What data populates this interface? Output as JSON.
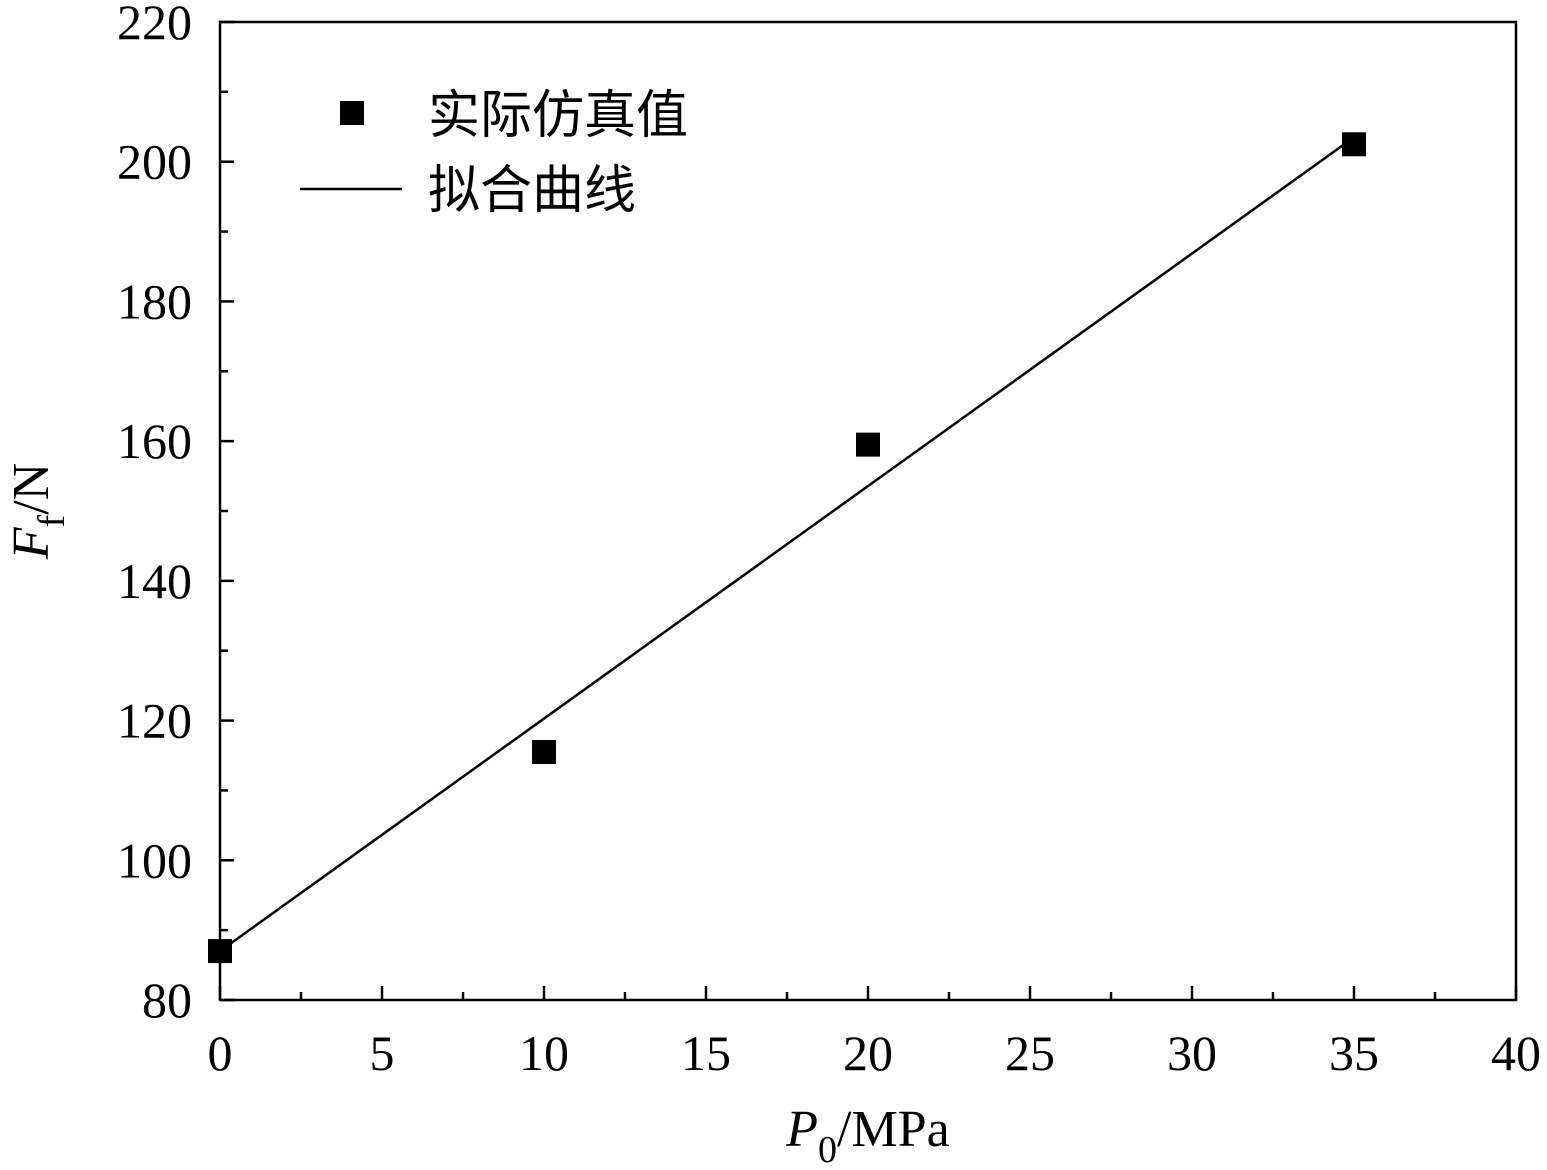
{
  "chart_data": {
    "type": "scatter",
    "x_label": {
      "var": "P",
      "sub": "0",
      "unit": "/MPa"
    },
    "y_label": {
      "var": "F",
      "sub": "f",
      "unit": "/N"
    },
    "xlim": [
      0,
      40
    ],
    "ylim": [
      80,
      220
    ],
    "x_ticks": [
      "0",
      "5",
      "10",
      "15",
      "20",
      "25",
      "30",
      "35",
      "40"
    ],
    "y_ticks": [
      "80",
      "100",
      "120",
      "140",
      "160",
      "180",
      "200",
      "220"
    ],
    "legend": {
      "position": "top-left",
      "entries": [
        "实际仿真值",
        "拟合曲线"
      ]
    },
    "series": [
      {
        "name": "实际仿真值",
        "kind": "markers",
        "marker": "square",
        "color": "#000000",
        "x": [
          0,
          10,
          20,
          35
        ],
        "y": [
          87,
          115.5,
          159.5,
          202.5
        ]
      },
      {
        "name": "拟合曲线",
        "kind": "line",
        "color": "#000000",
        "x": [
          0,
          35
        ],
        "y": [
          87,
          203.5
        ]
      }
    ]
  }
}
